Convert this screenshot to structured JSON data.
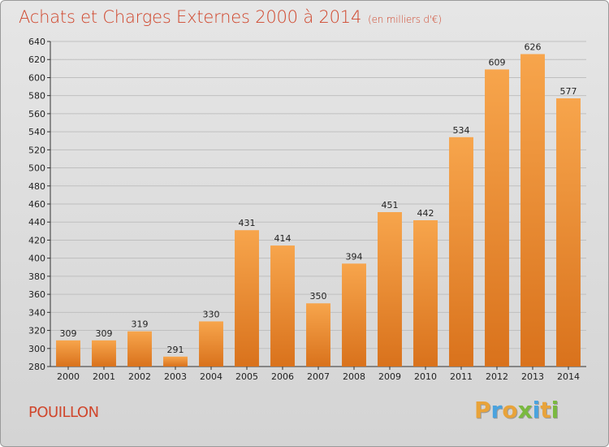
{
  "title": "Achats et Charges Externes 2000 à 2014",
  "subtitle": "(en milliers d'€)",
  "place": "POUILLON",
  "brand": {
    "letters": [
      "P",
      "r",
      "o",
      "x",
      "i",
      "t",
      "i"
    ],
    "colors": [
      "#e8a33a",
      "#4aa3df",
      "#e8a33a",
      "#7ab940",
      "#4aa3df",
      "#e8a33a",
      "#7ab940"
    ]
  },
  "colors": {
    "bar_light": "#f7a54c",
    "bar_dark": "#d9721c",
    "title": "#d0462c",
    "grid": "#bfbfbf"
  },
  "chart_data": {
    "type": "bar",
    "title": "Achats et Charges Externes 2000 à 2014",
    "subtitle": "(en milliers d'€)",
    "categories": [
      "2000",
      "2001",
      "2002",
      "2003",
      "2004",
      "2005",
      "2006",
      "2007",
      "2008",
      "2009",
      "2010",
      "2011",
      "2012",
      "2013",
      "2014"
    ],
    "values": [
      309,
      309,
      319,
      291,
      330,
      431,
      414,
      350,
      394,
      451,
      442,
      534,
      609,
      626,
      577
    ],
    "ylim": [
      280,
      640
    ],
    "yticks": [
      280,
      300,
      320,
      340,
      360,
      380,
      400,
      420,
      440,
      460,
      480,
      500,
      520,
      540,
      560,
      580,
      600,
      620,
      640
    ],
    "grid": true,
    "xlabel": "",
    "ylabel": ""
  }
}
